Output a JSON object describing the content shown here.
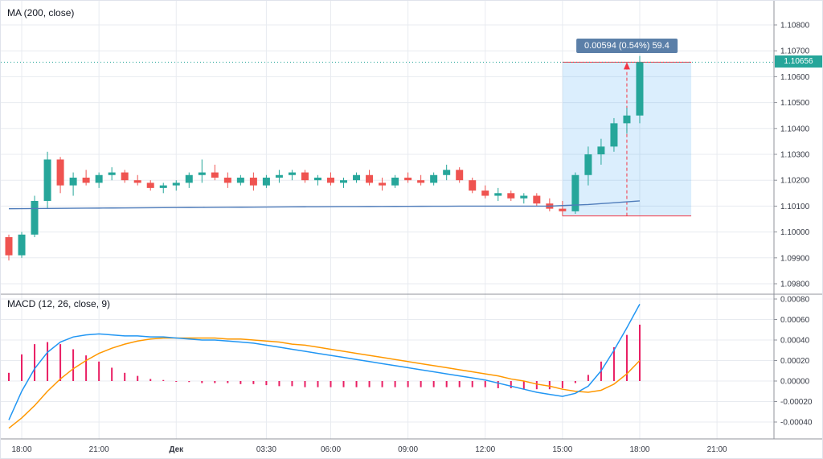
{
  "header": {
    "ma_label": "MA (200, close)",
    "macd_label": "MACD (12, 26, close, 9)"
  },
  "last_price_badge": "1.10656",
  "measure_tool": {
    "label": "0.00594 (0.54%) 59.4",
    "price_from": 1.10062,
    "price_to": 1.10656,
    "index_from": 43,
    "index_to": 53
  },
  "colors": {
    "background": "#ffffff",
    "up": "#26a69a",
    "down": "#ef5350",
    "ma_line": "#4f7cba",
    "macd_line": "#2196f3",
    "signal_line": "#ff9800",
    "histogram": "#e91e63",
    "grid": "#e8ebf0",
    "separator": "#90939b",
    "axis_text": "#363a45",
    "last_price": "#26a69a",
    "measure_fill": "rgba(33,150,243,0.16)",
    "measure_line": "#f23645",
    "measure_label_bg": "#5b7fa8"
  },
  "chart_data": [
    {
      "type": "candlestick",
      "pane": "price",
      "title": "Price pane with MA (200, close)",
      "interval": "30 min",
      "ylim": [
        1.098,
        1.108
      ],
      "grid": true,
      "last_price": 1.10656,
      "yticks": [
        "1.10800",
        "1.10700",
        "1.10600",
        "1.10500",
        "1.10400",
        "1.10300",
        "1.10200",
        "1.10100",
        "1.10000",
        "1.09900",
        "1.09800"
      ],
      "xticks": [
        {
          "text": "18:00",
          "index": 1
        },
        {
          "text": "21:00",
          "index": 7
        },
        {
          "text": "Дек",
          "index": 13,
          "bold": true
        },
        {
          "text": "03:30",
          "index": 20
        },
        {
          "text": "06:00",
          "index": 25
        },
        {
          "text": "09:00",
          "index": 31
        },
        {
          "text": "12:00",
          "index": 37
        },
        {
          "text": "15:00",
          "index": 43
        },
        {
          "text": "18:00",
          "index": 49
        },
        {
          "text": "21:00",
          "index": 55
        }
      ],
      "x": [
        "17:30",
        "18:00",
        "18:30",
        "19:00",
        "19:30",
        "20:00",
        "20:30",
        "21:00",
        "21:30",
        "22:00",
        "22:30",
        "23:00",
        "23:30",
        "00:00",
        "00:30",
        "01:00",
        "01:30",
        "02:00",
        "02:30",
        "03:00",
        "03:30",
        "04:00",
        "04:30",
        "05:00",
        "05:30",
        "06:00",
        "06:30",
        "07:00",
        "07:30",
        "08:00",
        "08:30",
        "09:00",
        "09:30",
        "10:00",
        "10:30",
        "11:00",
        "11:30",
        "12:00",
        "12:30",
        "13:00",
        "13:30",
        "14:00",
        "14:30",
        "15:00",
        "15:30",
        "16:00",
        "16:30",
        "17:00",
        "17:30",
        "18:00"
      ],
      "ohlc": [
        [
          1.0998,
          1.0999,
          1.0989,
          1.0991
        ],
        [
          1.0991,
          1.1,
          1.099,
          1.0999
        ],
        [
          1.0999,
          1.1014,
          1.0998,
          1.1012
        ],
        [
          1.1012,
          1.1031,
          1.1009,
          1.1028
        ],
        [
          1.1028,
          1.1029,
          1.1015,
          1.1018
        ],
        [
          1.1018,
          1.1023,
          1.1014,
          1.1021
        ],
        [
          1.1021,
          1.1024,
          1.1018,
          1.1019
        ],
        [
          1.1019,
          1.1023,
          1.1017,
          1.1022
        ],
        [
          1.1022,
          1.1025,
          1.102,
          1.1023
        ],
        [
          1.1023,
          1.1024,
          1.1019,
          1.102
        ],
        [
          1.102,
          1.1022,
          1.1018,
          1.1019
        ],
        [
          1.1019,
          1.102,
          1.1016,
          1.1017
        ],
        [
          1.1017,
          1.1019,
          1.1015,
          1.1018
        ],
        [
          1.1018,
          1.102,
          1.1016,
          1.1019
        ],
        [
          1.1019,
          1.1023,
          1.1017,
          1.1022
        ],
        [
          1.1022,
          1.1028,
          1.1019,
          1.1023
        ],
        [
          1.1023,
          1.1026,
          1.102,
          1.1021
        ],
        [
          1.1021,
          1.1023,
          1.1017,
          1.1019
        ],
        [
          1.1019,
          1.1022,
          1.1018,
          1.1021
        ],
        [
          1.1021,
          1.1023,
          1.1016,
          1.1018
        ],
        [
          1.1018,
          1.1022,
          1.1017,
          1.1021
        ],
        [
          1.1021,
          1.1024,
          1.1019,
          1.1022
        ],
        [
          1.1022,
          1.1024,
          1.102,
          1.1023
        ],
        [
          1.1023,
          1.1024,
          1.1019,
          1.102
        ],
        [
          1.102,
          1.1022,
          1.1018,
          1.1021
        ],
        [
          1.1021,
          1.1023,
          1.1018,
          1.1019
        ],
        [
          1.1019,
          1.1021,
          1.1017,
          1.102
        ],
        [
          1.102,
          1.1023,
          1.1019,
          1.1022
        ],
        [
          1.1022,
          1.1024,
          1.1018,
          1.1019
        ],
        [
          1.1019,
          1.1021,
          1.1016,
          1.1018
        ],
        [
          1.1018,
          1.1022,
          1.1017,
          1.1021
        ],
        [
          1.1021,
          1.1023,
          1.1019,
          1.102
        ],
        [
          1.102,
          1.1022,
          1.1018,
          1.1019
        ],
        [
          1.1019,
          1.1023,
          1.1018,
          1.1022
        ],
        [
          1.1022,
          1.1026,
          1.102,
          1.1024
        ],
        [
          1.1024,
          1.1025,
          1.1019,
          1.102
        ],
        [
          1.102,
          1.1021,
          1.1015,
          1.1016
        ],
        [
          1.1016,
          1.1018,
          1.1013,
          1.1014
        ],
        [
          1.1014,
          1.1017,
          1.1012,
          1.1015
        ],
        [
          1.1015,
          1.1016,
          1.1012,
          1.1013
        ],
        [
          1.1013,
          1.1015,
          1.1011,
          1.1014
        ],
        [
          1.1014,
          1.1015,
          1.101,
          1.1011
        ],
        [
          1.1011,
          1.1013,
          1.1008,
          1.1009
        ],
        [
          1.1009,
          1.1012,
          1.10062,
          1.1008
        ],
        [
          1.1008,
          1.1023,
          1.1007,
          1.1022
        ],
        [
          1.1022,
          1.1033,
          1.1018,
          1.103
        ],
        [
          1.103,
          1.1036,
          1.1026,
          1.1033
        ],
        [
          1.1033,
          1.1044,
          1.1031,
          1.1042
        ],
        [
          1.1042,
          1.1048,
          1.1038,
          1.1045
        ],
        [
          1.1045,
          1.1068,
          1.1042,
          1.10656
        ]
      ],
      "ma200_control_points": [
        [
          0,
          1.1009
        ],
        [
          12,
          1.10094
        ],
        [
          25,
          1.10098
        ],
        [
          36,
          1.101
        ],
        [
          42,
          1.101
        ],
        [
          45,
          1.10106
        ],
        [
          49,
          1.1012
        ]
      ]
    },
    {
      "type": "macd",
      "pane": "macd",
      "title": "MACD (12, 26, close, 9)",
      "ylim": [
        -0.0004,
        0.0008
      ],
      "grid": true,
      "yticks": [
        "0.00080",
        "0.00060",
        "0.00040",
        "0.00020",
        "0.00000",
        "-0.00020",
        "-0.00040"
      ],
      "macd": [
        -0.00038,
        -0.0001,
        0.00012,
        0.00028,
        0.00038,
        0.00043,
        0.00045,
        0.00046,
        0.00045,
        0.00044,
        0.00044,
        0.00043,
        0.00043,
        0.00042,
        0.00041,
        0.0004,
        0.0004,
        0.00039,
        0.00038,
        0.00037,
        0.00035,
        0.00033,
        0.00031,
        0.00029,
        0.00027,
        0.00025,
        0.00023,
        0.00021,
        0.00019,
        0.00017,
        0.00015,
        0.00013,
        0.00011,
        9e-05,
        7e-05,
        5e-05,
        3e-05,
        1e-05,
        -2e-05,
        -5e-05,
        -8e-05,
        -0.00011,
        -0.00013,
        -0.00015,
        -0.00012,
        -5e-05,
        0.0001,
        0.0003,
        0.00052,
        0.00075
      ],
      "signal": [
        -0.00046,
        -0.00036,
        -0.00024,
        -0.0001,
        2e-05,
        0.00012,
        0.0002,
        0.00027,
        0.00032,
        0.00036,
        0.00039,
        0.00041,
        0.00042,
        0.00042,
        0.00042,
        0.00042,
        0.00042,
        0.00041,
        0.00041,
        0.0004,
        0.00039,
        0.00038,
        0.00036,
        0.00035,
        0.00033,
        0.00031,
        0.00029,
        0.00027,
        0.00025,
        0.00023,
        0.00021,
        0.00019,
        0.00017,
        0.00015,
        0.00013,
        0.00011,
        9e-05,
        7e-05,
        5e-05,
        2e-05,
        0.0,
        -3e-05,
        -5e-05,
        -8e-05,
        -0.0001,
        -0.00011,
        -9e-05,
        -3e-05,
        7e-05,
        0.0002
      ]
    }
  ]
}
